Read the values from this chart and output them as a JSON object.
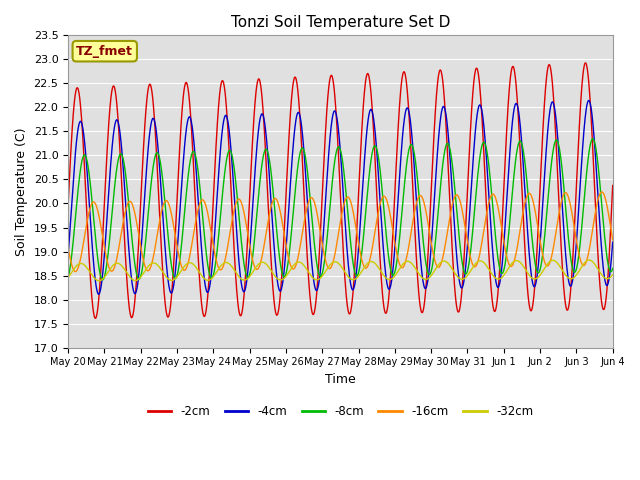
{
  "title": "Tonzi Soil Temperature Set D",
  "xlabel": "Time",
  "ylabel": "Soil Temperature (C)",
  "annotation": "TZ_fmet",
  "ylim": [
    17.0,
    23.5
  ],
  "yticks": [
    17.0,
    17.5,
    18.0,
    18.5,
    19.0,
    19.5,
    20.0,
    20.5,
    21.0,
    21.5,
    22.0,
    22.5,
    23.0,
    23.5
  ],
  "series": [
    {
      "label": "-2cm",
      "color": "#dd0000",
      "amplitude": 2.4,
      "mean": 20.0,
      "phase_shift": 0.0,
      "trend": 0.025,
      "amp_growth": 0.012
    },
    {
      "label": "-4cm",
      "color": "#0000cc",
      "amplitude": 1.8,
      "mean": 19.9,
      "phase_shift": 0.09,
      "trend": 0.022,
      "amp_growth": 0.009
    },
    {
      "label": "-8cm",
      "color": "#00bb00",
      "amplitude": 1.3,
      "mean": 19.7,
      "phase_shift": 0.2,
      "trend": 0.018,
      "amp_growth": 0.006
    },
    {
      "label": "-16cm",
      "color": "#ff8800",
      "amplitude": 0.72,
      "mean": 19.3,
      "phase_shift": 0.45,
      "trend": 0.012,
      "amp_growth": 0.003
    },
    {
      "label": "-32cm",
      "color": "#cccc00",
      "amplitude": 0.18,
      "mean": 18.57,
      "phase_shift": 1.1,
      "trend": 0.004,
      "amp_growth": 0.001
    }
  ],
  "xtick_labels": [
    "May 20",
    "May 21",
    "May 22",
    "May 23",
    "May 24",
    "May 25",
    "May 26",
    "May 27",
    "May 28",
    "May 29",
    "May 30",
    "May 31",
    "Jun 1",
    "Jun 2",
    "Jun 3",
    "Jun 4"
  ],
  "background_color": "#e0e0e0",
  "grid_color": "#ffffff",
  "annotation_bg": "#ffff99",
  "annotation_border": "#999900",
  "annotation_text_color": "#880000",
  "figwidth": 6.4,
  "figheight": 4.8,
  "dpi": 100
}
